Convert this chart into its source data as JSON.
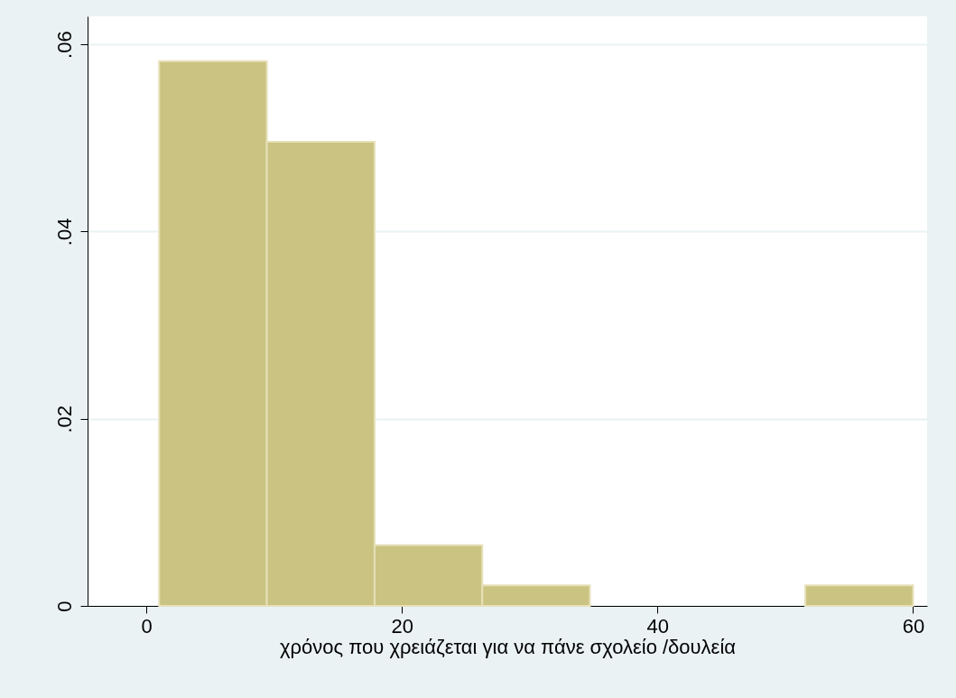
{
  "chart_data": {
    "type": "histogram",
    "xlabel": "χρόνος  που χρειάζεται  για να πάνε σχολείο /δουλεία",
    "bins": [
      1,
      9.43,
      17.86,
      26.29,
      34.71,
      43.14,
      51.57,
      60
    ],
    "values": [
      0.0582,
      0.0496,
      0.0065,
      0.0022,
      0,
      0,
      0.0022
    ],
    "color": "#cbc382",
    "xlim": [
      -4.6,
      61.1
    ],
    "xticks": [
      0,
      20,
      40,
      60
    ],
    "ylim": [
      0,
      0.063
    ],
    "yticks": [
      {
        "value": 0,
        "label": "0"
      },
      {
        "value": 0.02,
        "label": ".02"
      },
      {
        "value": 0.04,
        "label": ".04"
      },
      {
        "value": 0.06,
        "label": ".06"
      }
    ],
    "grid": "y"
  }
}
